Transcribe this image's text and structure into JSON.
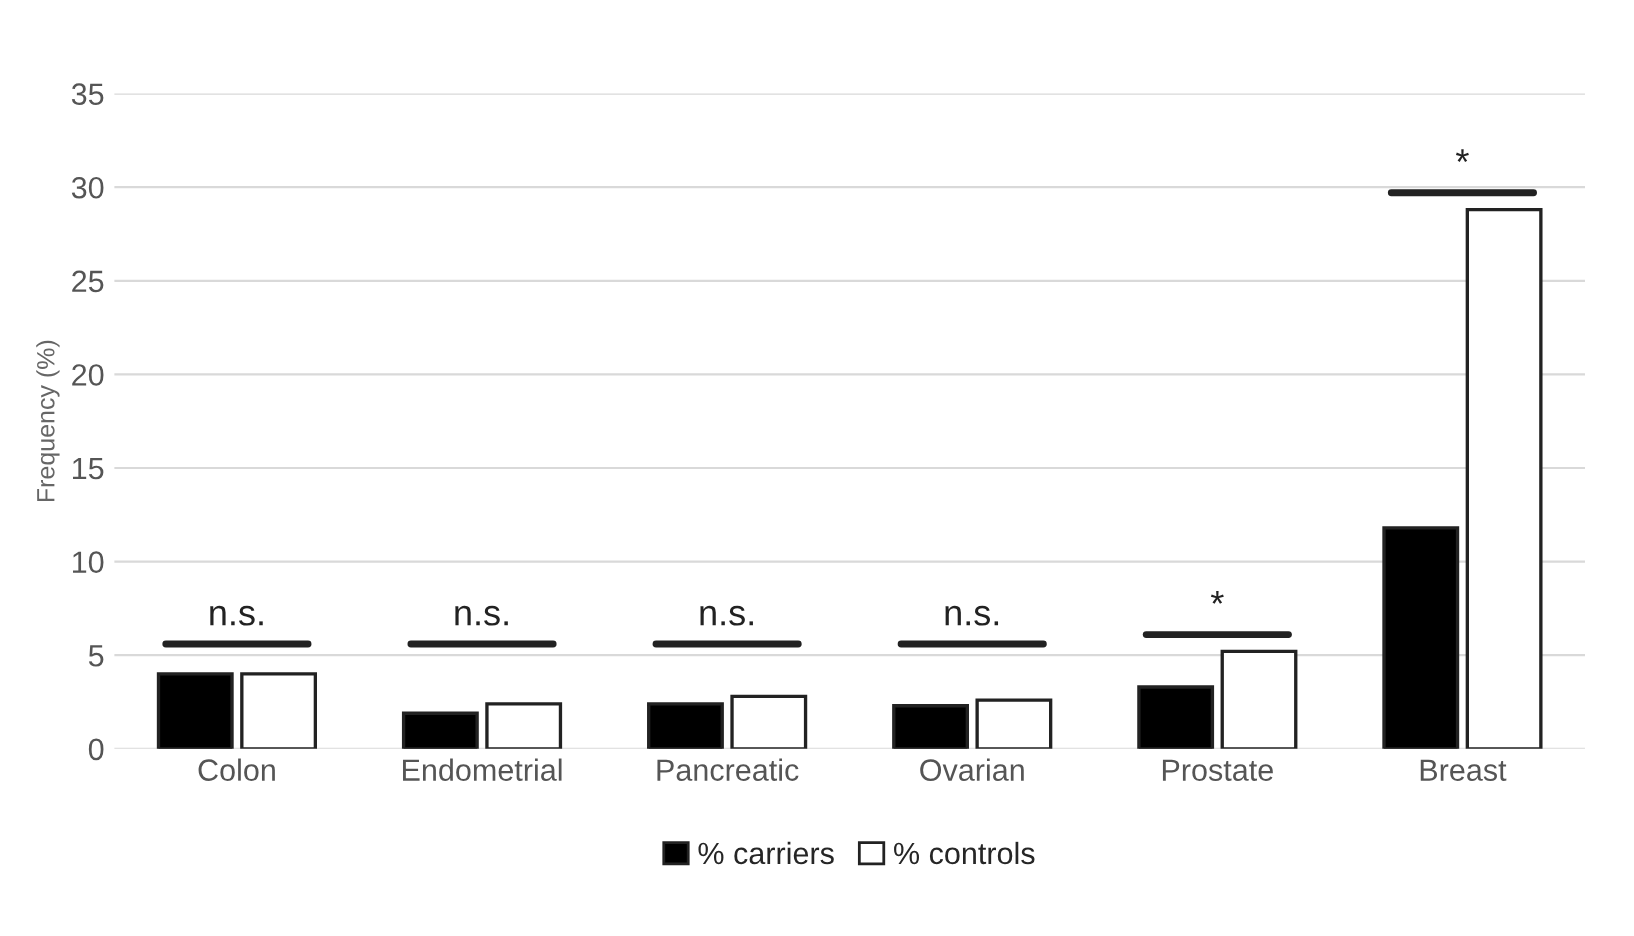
{
  "chart_data": {
    "type": "bar",
    "ylabel": "Frequency (%)",
    "categories": [
      "Colon",
      "Endometrial",
      "Pancreatic",
      "Ovarian",
      "Prostate",
      "Breast"
    ],
    "series": [
      {
        "name": "% carriers",
        "color": "#000000",
        "values": [
          4.0,
          1.9,
          2.4,
          2.3,
          3.3,
          11.8
        ]
      },
      {
        "name": "% controls",
        "color": "#ffffff",
        "values": [
          4.0,
          2.4,
          2.8,
          2.6,
          5.2,
          28.8
        ]
      }
    ],
    "ylim": [
      0,
      35
    ],
    "yticks": [
      0,
      5,
      10,
      15,
      20,
      25,
      30,
      35
    ],
    "grid": "y",
    "legend": "bottom",
    "annotations": [
      "n.s.",
      "n.s.",
      "n.s.",
      "n.s.",
      "*",
      "*"
    ]
  }
}
